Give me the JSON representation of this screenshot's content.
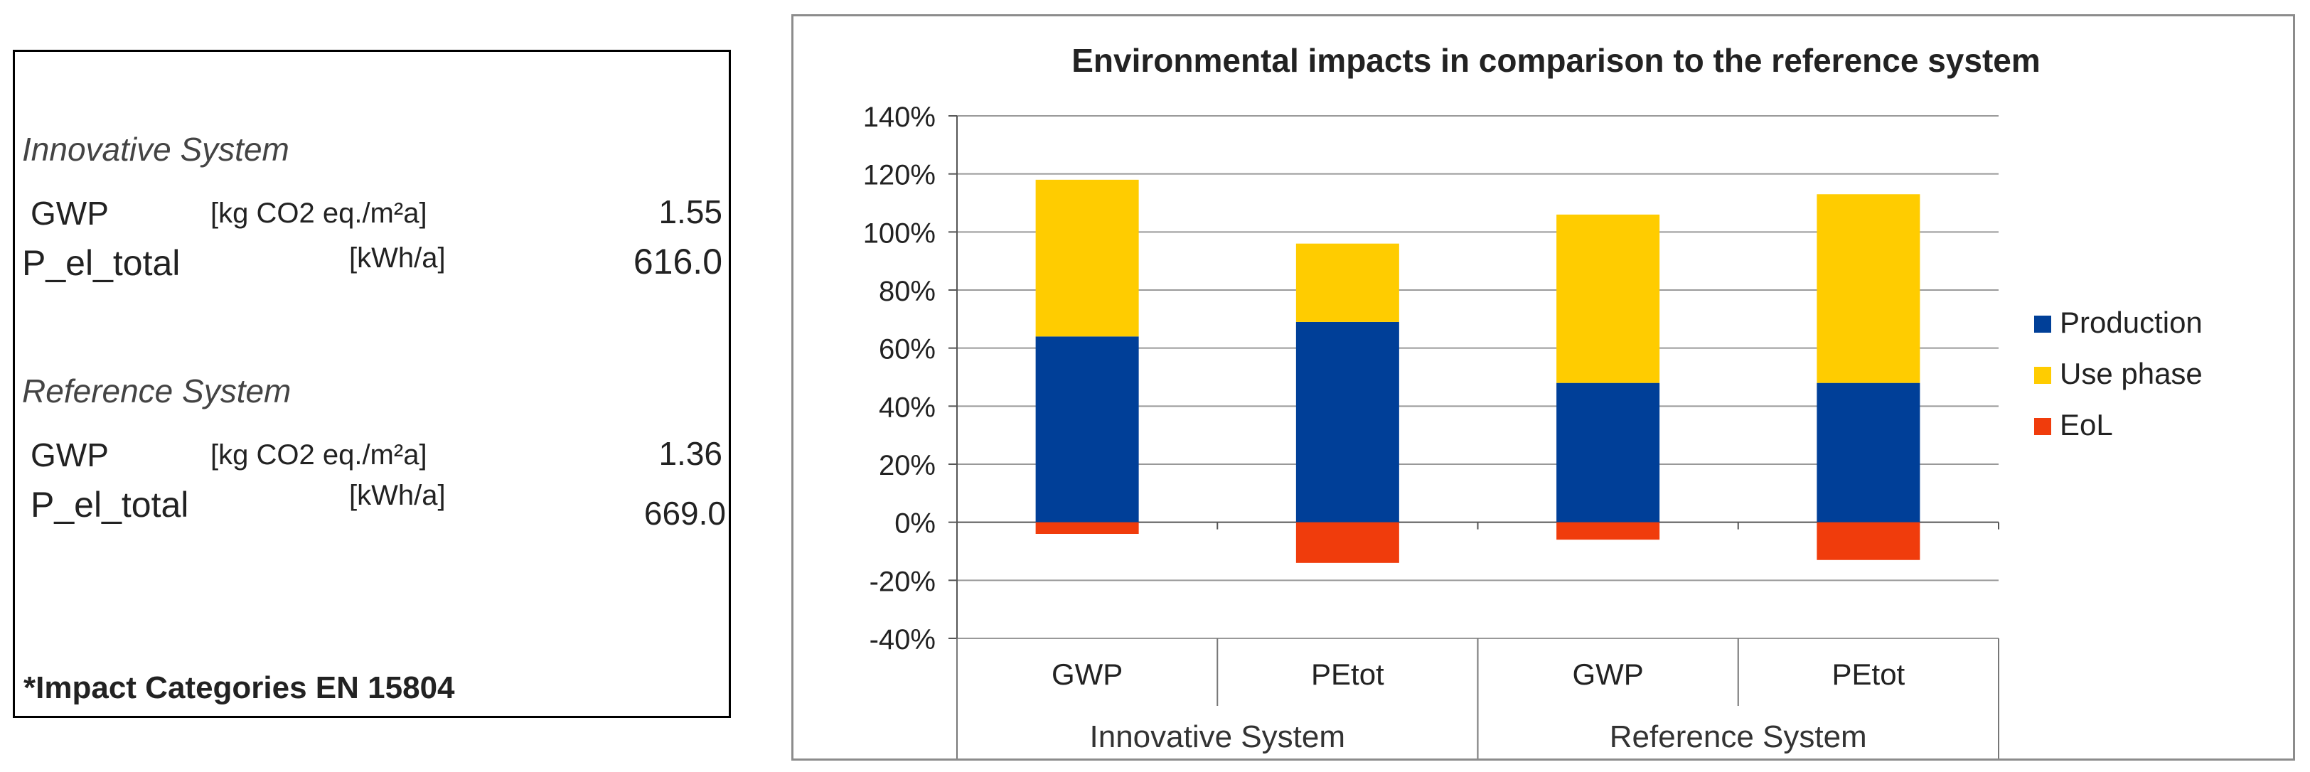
{
  "panel": {
    "innovative": {
      "title": "Innovative System",
      "gwp": {
        "label": "GWP",
        "unit": "[kg CO2 eq./m²a]",
        "value": "1.55"
      },
      "pel": {
        "label": "P_el_total",
        "unit": "[kWh/a]",
        "value": "616.0"
      }
    },
    "reference": {
      "title": "Reference System",
      "gwp": {
        "label": "GWP",
        "unit": "[kg CO2 eq./m²a]",
        "value": "1.36"
      },
      "pel": {
        "label": "P_el_total",
        "unit": "[kWh/a]",
        "value": "669.0"
      }
    },
    "footnote": "*Impact Categories EN 15804"
  },
  "chart_data": {
    "type": "bar",
    "stacked": true,
    "title": "Environmental impacts in comparison to the reference system",
    "categories": [
      "GWP",
      "PEtot",
      "GWP",
      "PEtot"
    ],
    "groups": [
      {
        "label": "Innovative System",
        "span": [
          0,
          1
        ]
      },
      {
        "label": "Reference System",
        "span": [
          2,
          3
        ]
      }
    ],
    "series": [
      {
        "name": "Production",
        "color": "#003f98",
        "values": [
          64,
          69,
          48,
          48
        ]
      },
      {
        "name": "Use phase",
        "color": "#ffcc00",
        "values": [
          54,
          27,
          58,
          65
        ]
      },
      {
        "name": "EoL",
        "color": "#f03c0c",
        "values": [
          -4,
          -14,
          -6,
          -13
        ]
      }
    ],
    "ylim": [
      -40,
      140
    ],
    "yticks": [
      "140%",
      "120%",
      "100%",
      "80%",
      "60%",
      "40%",
      "20%",
      "0%",
      "-20%",
      "-40%"
    ],
    "ytick_values": [
      140,
      120,
      100,
      80,
      60,
      40,
      20,
      0,
      -20,
      -40
    ],
    "legend_position": "right",
    "grid": true
  }
}
